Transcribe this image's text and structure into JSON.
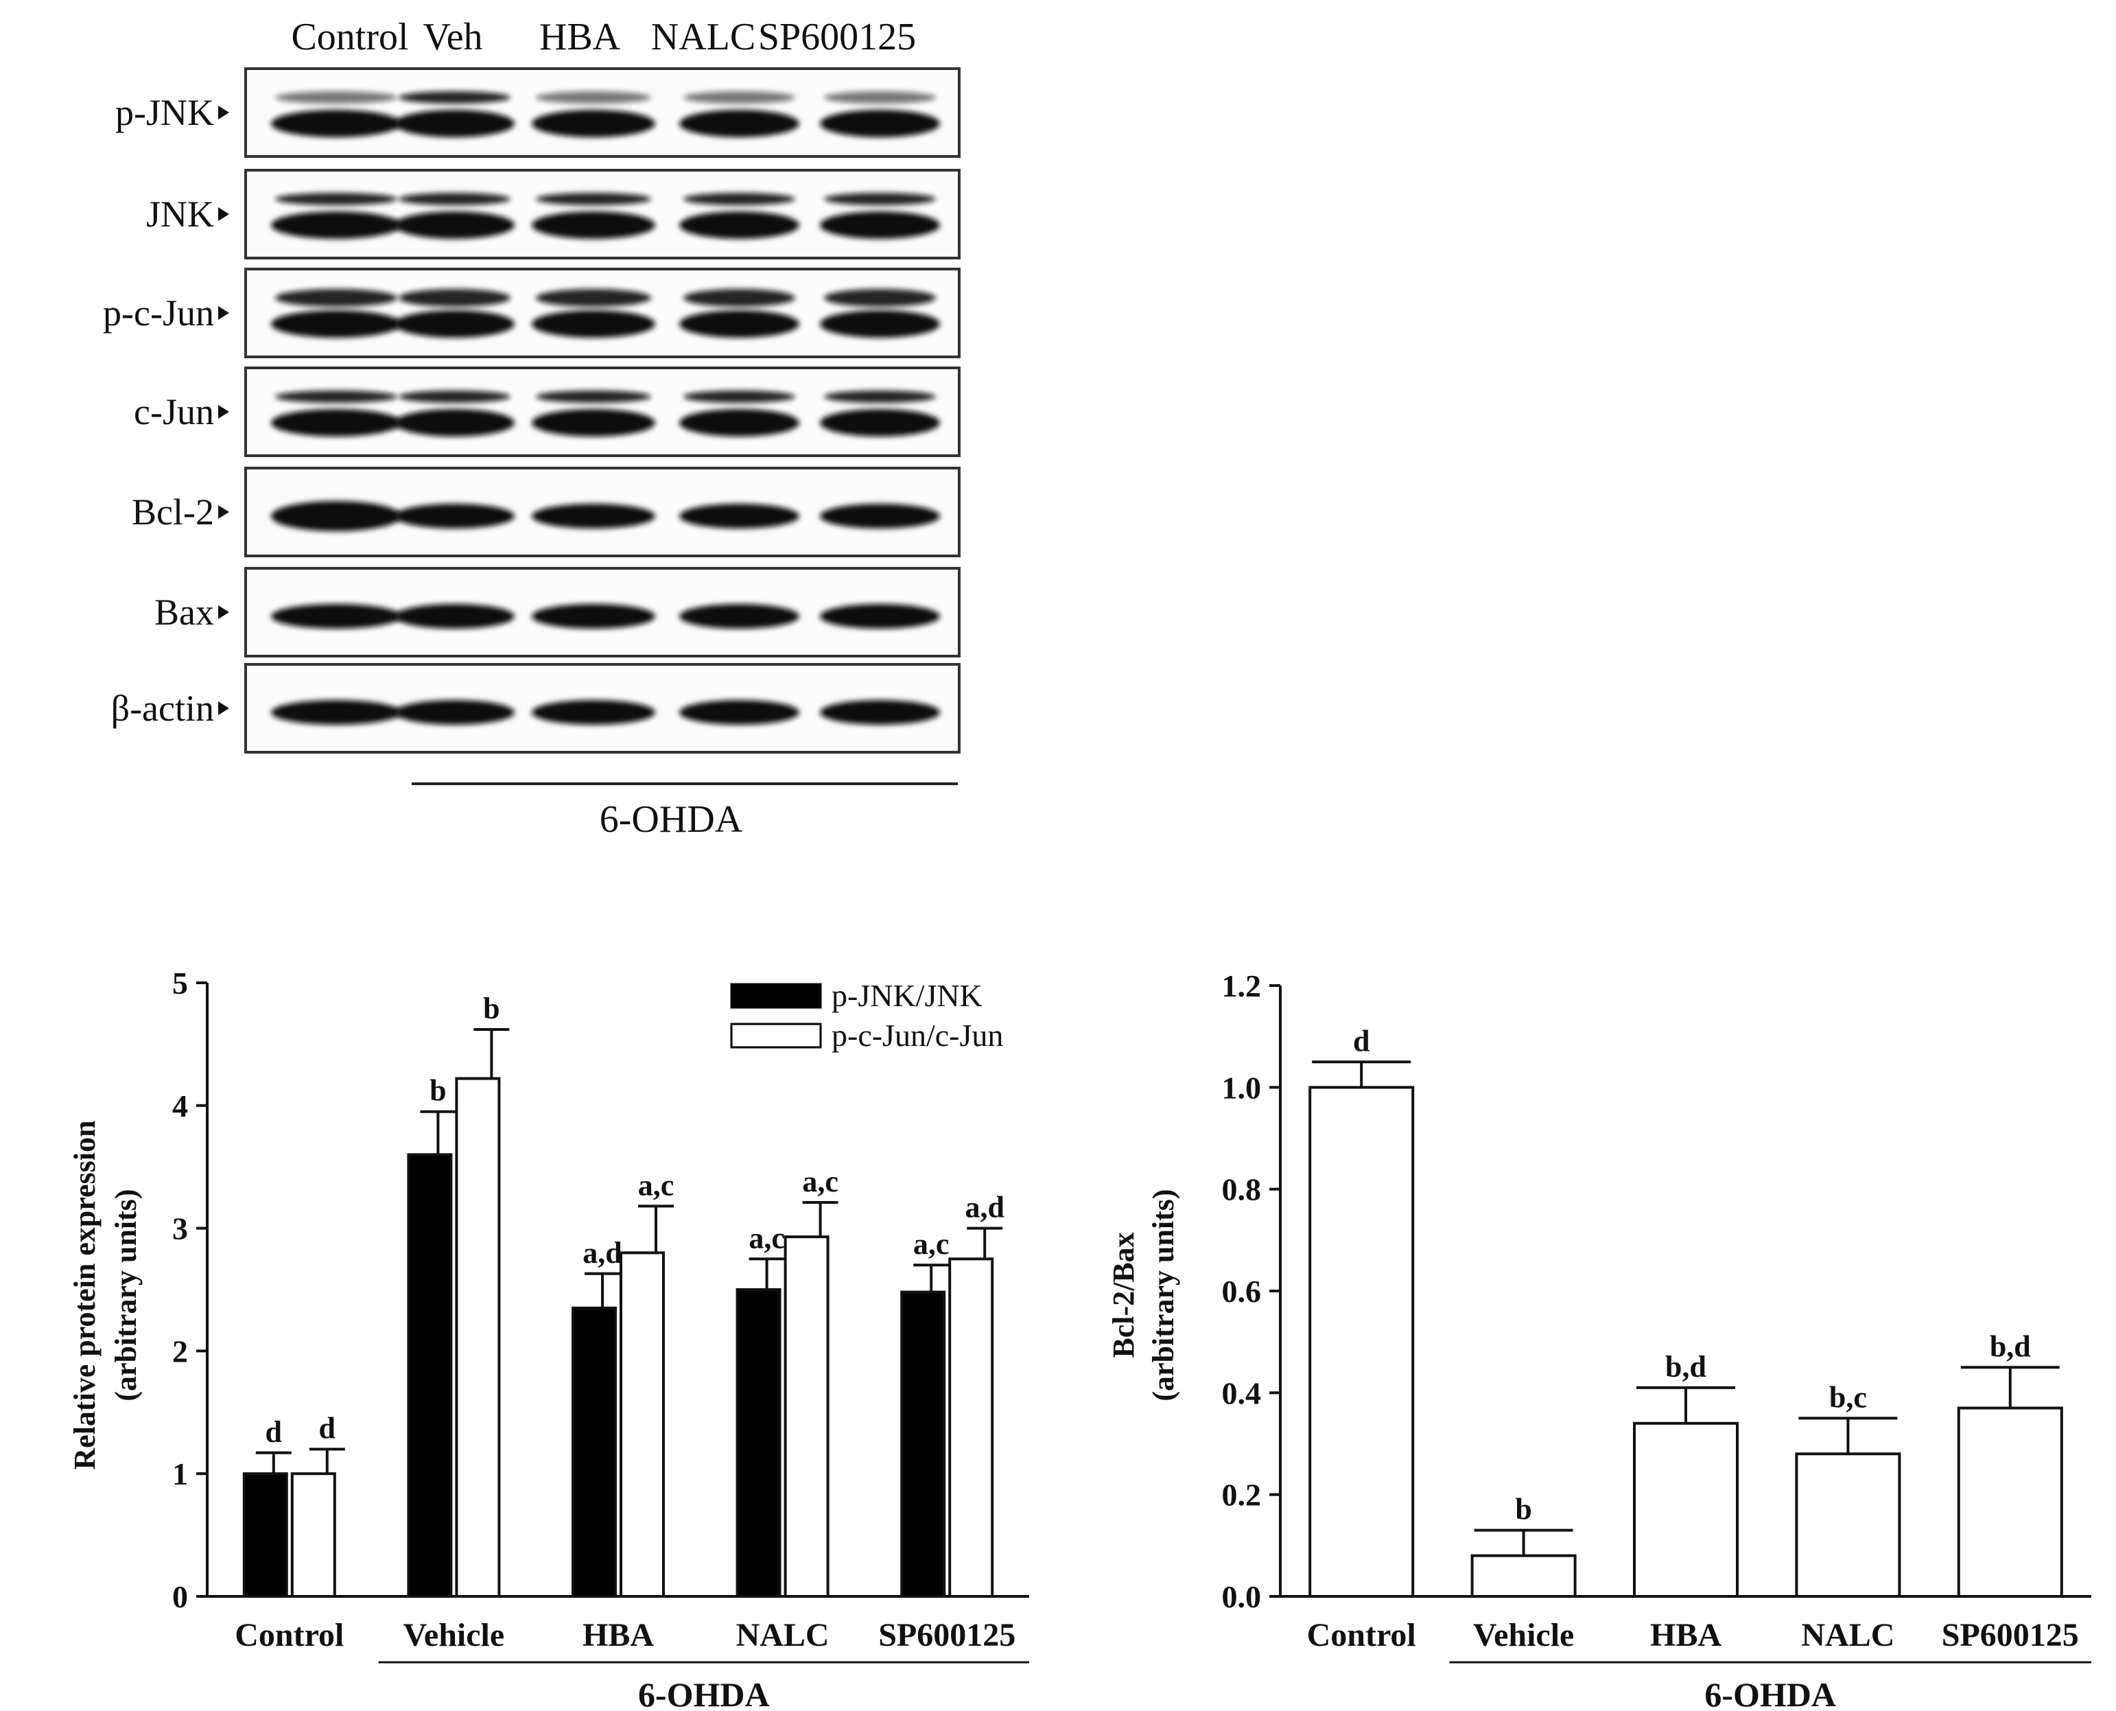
{
  "blot": {
    "lanes": [
      "Control",
      "Veh",
      "HBA",
      "NALC",
      "SP600125"
    ],
    "rows": [
      {
        "label": "p-JNK",
        "pattern": "double"
      },
      {
        "label": "JNK",
        "pattern": "double"
      },
      {
        "label": "p-c-Jun",
        "pattern": "double-heavy"
      },
      {
        "label": "c-Jun",
        "pattern": "double"
      },
      {
        "label": "Bcl-2",
        "pattern": "single"
      },
      {
        "label": "Bax",
        "pattern": "single"
      },
      {
        "label": "β-actin",
        "pattern": "single"
      }
    ],
    "treatment_label": "6-OHDA"
  },
  "chart_data": [
    {
      "type": "bar",
      "categories": [
        "Control",
        "Vehicle",
        "HBA",
        "NALC",
        "SP600125"
      ],
      "series": [
        {
          "name": "p-JNK/JNK",
          "color": "#000000",
          "values": [
            1.0,
            3.6,
            2.35,
            2.5,
            2.48
          ],
          "errors": [
            0.17,
            0.35,
            0.28,
            0.25,
            0.22
          ],
          "labels": [
            "d",
            "b",
            "a,d",
            "a,c",
            "a,c"
          ]
        },
        {
          "name": "p-c-Jun/c-Jun",
          "color": "#ffffff",
          "values": [
            1.0,
            4.22,
            2.8,
            2.93,
            2.75
          ],
          "errors": [
            0.2,
            0.4,
            0.38,
            0.28,
            0.25
          ],
          "labels": [
            "d",
            "b",
            "a,c",
            "a,c",
            "a,d"
          ]
        }
      ],
      "ylabel": "Relative protein expression",
      "ylabel2": "(arbitrary units)",
      "ylim": [
        0,
        5
      ],
      "yticks": [
        "0",
        "1",
        "2",
        "3",
        "4",
        "5"
      ],
      "group_label": "6-OHDA",
      "legend": "top-right"
    },
    {
      "type": "bar",
      "categories": [
        "Control",
        "Vehicle",
        "HBA",
        "NALC",
        "SP600125"
      ],
      "values": [
        1.0,
        0.08,
        0.34,
        0.28,
        0.37
      ],
      "errors": [
        0.05,
        0.05,
        0.07,
        0.07,
        0.08
      ],
      "labels": [
        "d",
        "b",
        "b,d",
        "b,c",
        "b,d"
      ],
      "ylabel": "Bcl-2/Bax",
      "ylabel2": "(arbitrary units)",
      "ylim": [
        0,
        1.2
      ],
      "yticks": [
        "0.0",
        "0.2",
        "0.4",
        "0.6",
        "0.8",
        "1.0",
        "1.2"
      ],
      "group_label": "6-OHDA"
    }
  ]
}
